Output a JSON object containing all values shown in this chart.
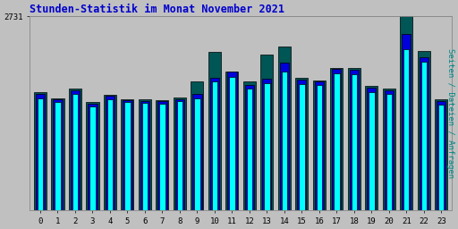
{
  "title": "Stunden-Statistik im Monat November 2021",
  "ylabel": "Seiten / Dateien / Anfragen",
  "ymax": 2731,
  "ytick_label": "2731",
  "background_color": "#c0c0c0",
  "title_color": "#0000cc",
  "ylabel_color": "#008888",
  "gridcolor": "#999999",
  "edgecolor": "#000000",
  "cyan": [
    1580,
    1520,
    1640,
    1460,
    1560,
    1520,
    1510,
    1505,
    1540,
    1580,
    1820,
    1880,
    1710,
    1790,
    1960,
    1780,
    1760,
    1930,
    1920,
    1670,
    1640,
    2270,
    2090,
    1490
  ],
  "blue": [
    1640,
    1560,
    1690,
    1500,
    1610,
    1555,
    1545,
    1540,
    1570,
    1640,
    1870,
    1950,
    1760,
    1850,
    2080,
    1840,
    1820,
    1990,
    1980,
    1730,
    1690,
    2480,
    2160,
    1540
  ],
  "green": [
    1660,
    1580,
    1710,
    1520,
    1630,
    1570,
    1560,
    1555,
    1590,
    1820,
    2230,
    1960,
    1820,
    2190,
    2310,
    1860,
    1830,
    2010,
    2000,
    1750,
    1720,
    2731,
    2240,
    1560
  ]
}
